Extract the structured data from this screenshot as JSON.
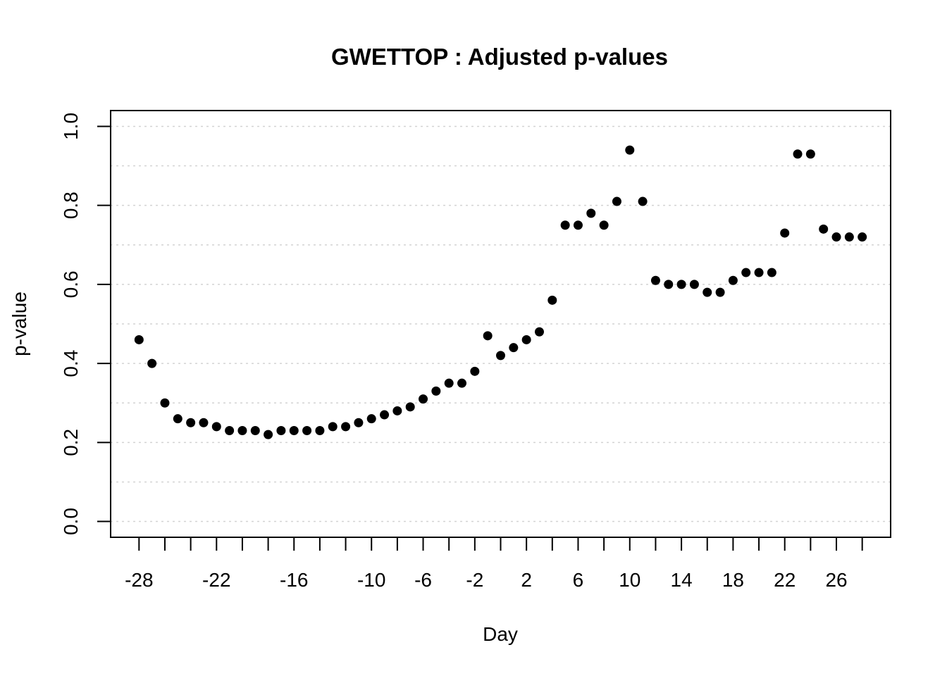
{
  "chart_data": {
    "type": "scatter",
    "title": "GWETTOP : Adjusted p-values",
    "xlabel": "Day",
    "ylabel": "p-value",
    "xlim": [
      -30.2,
      30.2
    ],
    "ylim": [
      -0.04,
      1.04
    ],
    "grid": true,
    "x_ticks": [
      -28,
      -26,
      -24,
      -22,
      -20,
      -18,
      -16,
      -14,
      -12,
      -10,
      -8,
      -6,
      -4,
      -2,
      0,
      2,
      4,
      6,
      8,
      10,
      12,
      14,
      16,
      18,
      20,
      22,
      24,
      26,
      28
    ],
    "x_tick_labels": [
      {
        "value": -28,
        "label": "-28"
      },
      {
        "value": -22,
        "label": "-22"
      },
      {
        "value": -16,
        "label": "-16"
      },
      {
        "value": -10,
        "label": "-10"
      },
      {
        "value": -6,
        "label": "-6"
      },
      {
        "value": -2,
        "label": "-2"
      },
      {
        "value": 2,
        "label": "2"
      },
      {
        "value": 6,
        "label": "6"
      },
      {
        "value": 10,
        "label": "10"
      },
      {
        "value": 14,
        "label": "14"
      },
      {
        "value": 18,
        "label": "18"
      },
      {
        "value": 22,
        "label": "22"
      },
      {
        "value": 26,
        "label": "26"
      }
    ],
    "y_ticks": [
      {
        "value": 0.0,
        "label": "0.0"
      },
      {
        "value": 0.2,
        "label": "0.2"
      },
      {
        "value": 0.4,
        "label": "0.4"
      },
      {
        "value": 0.6,
        "label": "0.6"
      },
      {
        "value": 0.8,
        "label": "0.8"
      },
      {
        "value": 1.0,
        "label": "1.0"
      }
    ],
    "y_grid": [
      0.0,
      0.1,
      0.2,
      0.3,
      0.4,
      0.5,
      0.6,
      0.7,
      0.8,
      0.9,
      1.0
    ],
    "x": [
      -28,
      -27,
      -26,
      -25,
      -24,
      -23,
      -22,
      -21,
      -20,
      -19,
      -18,
      -17,
      -16,
      -15,
      -14,
      -13,
      -12,
      -11,
      -10,
      -9,
      -8,
      -7,
      -6,
      -5,
      -4,
      -3,
      -2,
      -1,
      0,
      1,
      2,
      3,
      4,
      5,
      6,
      7,
      8,
      9,
      10,
      11,
      12,
      13,
      14,
      15,
      16,
      17,
      18,
      19,
      20,
      21,
      22,
      23,
      24,
      25,
      26,
      27,
      28
    ],
    "y": [
      0.46,
      0.4,
      0.3,
      0.26,
      0.25,
      0.25,
      0.24,
      0.23,
      0.23,
      0.23,
      0.22,
      0.23,
      0.23,
      0.23,
      0.23,
      0.24,
      0.24,
      0.25,
      0.26,
      0.27,
      0.28,
      0.29,
      0.31,
      0.33,
      0.35,
      0.35,
      0.38,
      0.47,
      0.42,
      0.44,
      0.46,
      0.48,
      0.56,
      0.75,
      0.75,
      0.78,
      0.75,
      0.81,
      0.94,
      0.81,
      0.61,
      0.6,
      0.6,
      0.6,
      0.58,
      0.58,
      0.61,
      0.63,
      0.63,
      0.63,
      0.73,
      0.93,
      0.93,
      0.74,
      0.72,
      0.72,
      0.72
    ]
  }
}
